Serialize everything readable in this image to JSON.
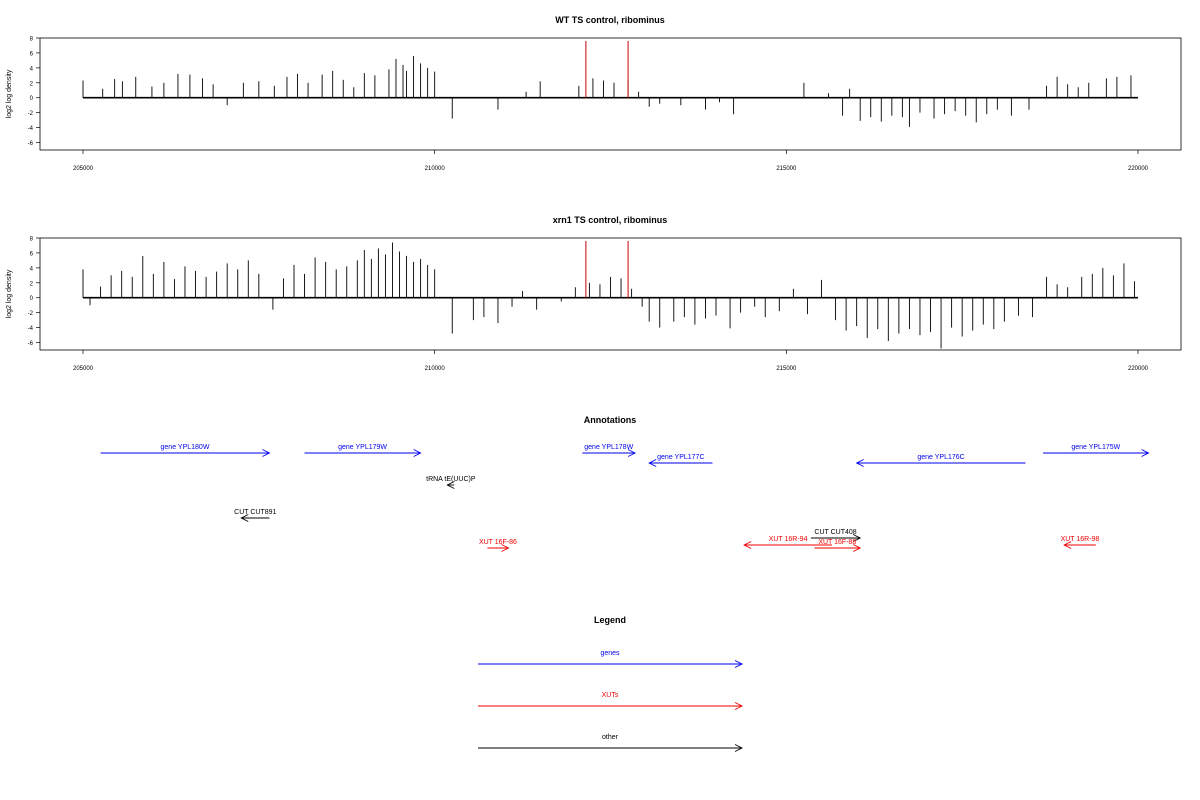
{
  "chart_data": [
    {
      "type": "bar",
      "title": "WT TS control, ribominus",
      "ylabel": "log2 log density",
      "xlim": [
        205000,
        220000
      ],
      "ylim": [
        -7,
        8
      ],
      "x_ticks": [
        205000,
        210000,
        215000,
        220000
      ],
      "x_tick_labels": [
        "205000",
        "210000",
        "215000",
        "220000"
      ],
      "y_ticks": [
        -6,
        -4,
        -2,
        0,
        2,
        4,
        6,
        8
      ],
      "y_tick_labels": [
        "-6",
        "-4",
        "-2",
        "0",
        "2",
        "4",
        "6",
        "8"
      ],
      "grid": false,
      "highlight_color": "#cc0000",
      "series": [
        {
          "values": [
            [
              205000,
              2.3
            ],
            [
              205280,
              1.2
            ],
            [
              205450,
              2.5
            ],
            [
              205560,
              2.2
            ],
            [
              205750,
              2.8
            ],
            [
              205980,
              1.5
            ],
            [
              206150,
              2.0
            ],
            [
              206350,
              3.2
            ],
            [
              206520,
              3.1
            ],
            [
              206700,
              2.6
            ],
            [
              206850,
              1.8
            ],
            [
              207050,
              -1.0
            ],
            [
              207280,
              2.0
            ],
            [
              207500,
              2.2
            ],
            [
              207720,
              1.6
            ],
            [
              207900,
              2.8
            ],
            [
              208050,
              3.2
            ],
            [
              208200,
              2.0
            ],
            [
              208400,
              3.1
            ],
            [
              208550,
              3.6
            ],
            [
              208700,
              2.4
            ],
            [
              208850,
              1.4
            ],
            [
              209000,
              3.3
            ],
            [
              209150,
              3.0
            ],
            [
              209350,
              3.8
            ],
            [
              209450,
              5.2
            ],
            [
              209550,
              4.4
            ],
            [
              209600,
              3.6
            ],
            [
              209700,
              5.6
            ],
            [
              209800,
              4.6
            ],
            [
              209900,
              4.0
            ],
            [
              210000,
              3.5
            ],
            [
              210250,
              -2.8
            ],
            [
              210900,
              -1.6
            ],
            [
              211300,
              0.8
            ],
            [
              211500,
              2.2
            ],
            [
              212050,
              1.6
            ],
            [
              212250,
              2.6
            ],
            [
              212400,
              2.3
            ],
            [
              212550,
              2.0
            ],
            [
              212750,
              2.4
            ],
            [
              212900,
              0.8
            ],
            [
              213050,
              -1.2
            ],
            [
              213200,
              -0.8
            ],
            [
              213500,
              -1.0
            ],
            [
              213850,
              -1.6
            ],
            [
              214050,
              -0.6
            ],
            [
              214250,
              -2.2
            ],
            [
              215250,
              2.0
            ],
            [
              215600,
              0.6
            ],
            [
              215800,
              -2.4
            ],
            [
              215900,
              1.2
            ],
            [
              216050,
              -3.1
            ],
            [
              216200,
              -2.6
            ],
            [
              216350,
              -3.2
            ],
            [
              216500,
              -2.4
            ],
            [
              216650,
              -2.6
            ],
            [
              216750,
              -3.9
            ],
            [
              216900,
              -2.0
            ],
            [
              217100,
              -2.8
            ],
            [
              217250,
              -2.2
            ],
            [
              217400,
              -1.8
            ],
            [
              217550,
              -2.4
            ],
            [
              217700,
              -3.3
            ],
            [
              217850,
              -2.2
            ],
            [
              218000,
              -1.6
            ],
            [
              218200,
              -2.4
            ],
            [
              218450,
              -1.6
            ],
            [
              218700,
              1.6
            ],
            [
              218850,
              2.8
            ],
            [
              219000,
              1.8
            ],
            [
              219150,
              1.4
            ],
            [
              219300,
              2.0
            ],
            [
              219550,
              2.6
            ],
            [
              219700,
              2.8
            ],
            [
              219900,
              3.0
            ]
          ]
        }
      ],
      "highlights": [
        [
          212150,
          7.6
        ],
        [
          212750,
          7.6
        ]
      ]
    },
    {
      "type": "bar",
      "title": "xrn1 TS control, ribominus",
      "ylabel": "log2 log density",
      "xlim": [
        205000,
        220000
      ],
      "ylim": [
        -7,
        8
      ],
      "x_ticks": [
        205000,
        210000,
        215000,
        220000
      ],
      "x_tick_labels": [
        "205000",
        "210000",
        "215000",
        "220000"
      ],
      "y_ticks": [
        -6,
        -4,
        -2,
        0,
        2,
        4,
        6,
        8
      ],
      "y_tick_labels": [
        "-6",
        "-4",
        "-2",
        "0",
        "2",
        "4",
        "6",
        "8"
      ],
      "grid": false,
      "highlight_color": "#cc0000",
      "series": [
        {
          "values": [
            [
              205000,
              3.8
            ],
            [
              205100,
              -1.0
            ],
            [
              205250,
              1.5
            ],
            [
              205400,
              3.0
            ],
            [
              205550,
              3.6
            ],
            [
              205700,
              2.8
            ],
            [
              205850,
              5.6
            ],
            [
              206000,
              3.2
            ],
            [
              206150,
              4.8
            ],
            [
              206300,
              2.5
            ],
            [
              206450,
              4.2
            ],
            [
              206600,
              3.6
            ],
            [
              206750,
              2.8
            ],
            [
              206900,
              3.5
            ],
            [
              207050,
              4.6
            ],
            [
              207200,
              3.8
            ],
            [
              207350,
              5.0
            ],
            [
              207500,
              3.2
            ],
            [
              207700,
              -1.6
            ],
            [
              207850,
              2.6
            ],
            [
              208000,
              4.4
            ],
            [
              208150,
              3.2
            ],
            [
              208300,
              5.4
            ],
            [
              208450,
              4.8
            ],
            [
              208600,
              3.8
            ],
            [
              208750,
              4.2
            ],
            [
              208900,
              5.0
            ],
            [
              209000,
              6.4
            ],
            [
              209100,
              5.2
            ],
            [
              209200,
              6.6
            ],
            [
              209300,
              5.8
            ],
            [
              209400,
              7.4
            ],
            [
              209500,
              6.2
            ],
            [
              209600,
              5.6
            ],
            [
              209700,
              4.8
            ],
            [
              209800,
              5.2
            ],
            [
              209900,
              4.4
            ],
            [
              210000,
              3.8
            ],
            [
              210250,
              -4.8
            ],
            [
              210550,
              -3.0
            ],
            [
              210700,
              -2.6
            ],
            [
              210900,
              -3.4
            ],
            [
              211100,
              -1.2
            ],
            [
              211250,
              0.9
            ],
            [
              211450,
              -1.6
            ],
            [
              211800,
              -0.5
            ],
            [
              212000,
              1.4
            ],
            [
              212200,
              2.0
            ],
            [
              212350,
              1.8
            ],
            [
              212500,
              2.8
            ],
            [
              212650,
              2.6
            ],
            [
              212800,
              1.2
            ],
            [
              212950,
              -1.2
            ],
            [
              213050,
              -3.2
            ],
            [
              213200,
              -4.0
            ],
            [
              213400,
              -3.2
            ],
            [
              213550,
              -2.6
            ],
            [
              213700,
              -3.6
            ],
            [
              213850,
              -2.8
            ],
            [
              214000,
              -2.4
            ],
            [
              214200,
              -4.1
            ],
            [
              214350,
              -2.0
            ],
            [
              214550,
              -1.2
            ],
            [
              214700,
              -2.6
            ],
            [
              214900,
              -1.8
            ],
            [
              215100,
              1.2
            ],
            [
              215300,
              -2.2
            ],
            [
              215500,
              2.4
            ],
            [
              215700,
              -3.0
            ],
            [
              215850,
              -4.4
            ],
            [
              216000,
              -3.8
            ],
            [
              216150,
              -5.4
            ],
            [
              216300,
              -4.2
            ],
            [
              216450,
              -5.8
            ],
            [
              216600,
              -4.8
            ],
            [
              216750,
              -4.2
            ],
            [
              216900,
              -5.0
            ],
            [
              217050,
              -4.6
            ],
            [
              217200,
              -6.8
            ],
            [
              217350,
              -4.0
            ],
            [
              217500,
              -5.2
            ],
            [
              217650,
              -4.4
            ],
            [
              217800,
              -3.6
            ],
            [
              217950,
              -4.2
            ],
            [
              218100,
              -3.2
            ],
            [
              218300,
              -2.4
            ],
            [
              218500,
              -2.6
            ],
            [
              218700,
              2.8
            ],
            [
              218850,
              1.8
            ],
            [
              219000,
              1.4
            ],
            [
              219200,
              2.8
            ],
            [
              219350,
              3.2
            ],
            [
              219500,
              4.0
            ],
            [
              219650,
              3.0
            ],
            [
              219800,
              4.6
            ],
            [
              219950,
              2.2
            ]
          ]
        }
      ],
      "highlights": [
        [
          212150,
          7.6
        ],
        [
          212750,
          7.6
        ]
      ]
    }
  ],
  "annotations_title": "Annotations",
  "annotations": [
    {
      "label": "gene YPL180W",
      "category": "genes",
      "start": 205250,
      "end": 207650
    },
    {
      "label": "gene YPL179W",
      "category": "genes",
      "start": 208150,
      "end": 209800
    },
    {
      "label": "gene YPL178W",
      "category": "genes",
      "start": 212100,
      "end": 212850
    },
    {
      "label": "gene YPL177C",
      "category": "genes",
      "start": 213950,
      "end": 213050
    },
    {
      "label": "gene YPL176C",
      "category": "genes",
      "start": 218400,
      "end": 216000
    },
    {
      "label": "gene YPL175W",
      "category": "genes",
      "start": 218650,
      "end": 220150
    },
    {
      "label": "tRNA tE(UUC)P",
      "category": "other",
      "start": 210280,
      "end": 210180
    },
    {
      "label": "CUT CUT891",
      "category": "other",
      "start": 207650,
      "end": 207250
    },
    {
      "label": "CUT CUT408",
      "category": "other",
      "start": 215350,
      "end": 216050
    },
    {
      "label": "XUT 16F-86",
      "category": "XUTs",
      "start": 210750,
      "end": 211050
    },
    {
      "label": "XUT 16R-94",
      "category": "XUTs",
      "start": 215650,
      "end": 214400
    },
    {
      "label": "XUT 16F-88",
      "category": "XUTs",
      "start": 215400,
      "end": 216050
    },
    {
      "label": "XUT 16R-98",
      "category": "XUTs",
      "start": 219400,
      "end": 218950
    }
  ],
  "legend": {
    "title": "Legend",
    "items": [
      {
        "label": "genes",
        "color": "#0000ee"
      },
      {
        "label": "XUTs",
        "color": "#ee0000"
      },
      {
        "label": "other",
        "color": "#000000"
      }
    ]
  },
  "colors": {
    "genes": "#0000ee",
    "XUTs": "#ee0000",
    "other": "#000000",
    "bars": "#000000",
    "highlight": "#cc0000"
  }
}
